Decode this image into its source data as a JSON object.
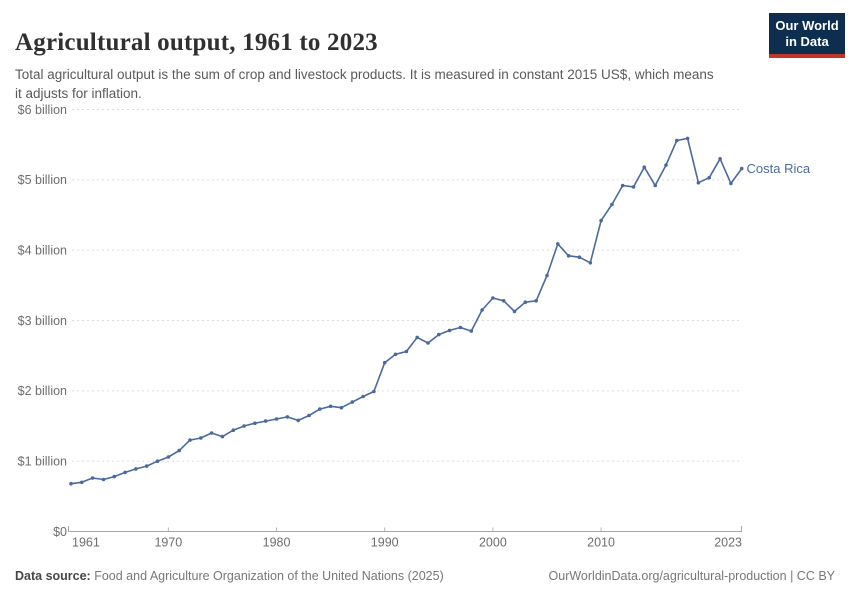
{
  "header": {
    "title": "Agricultural output, 1961 to 2023",
    "subtitle": "Total agricultural output is the sum of crop and livestock products. It is measured in constant 2015 US$, which means it adjusts for inflation.",
    "logo": {
      "line1": "Our World",
      "line2": "in Data",
      "bg_color": "#0d2e4e",
      "bar_color": "#c0362c"
    }
  },
  "chart_data": {
    "type": "line",
    "title": "Agricultural output, 1961 to 2023",
    "entity": "Costa Rica",
    "unit": "constant 2015 US$, billions",
    "xlim": [
      1961,
      2023
    ],
    "ylim": [
      0,
      6
    ],
    "grid": true,
    "legend": "end-of-line-label",
    "x_ticks": [
      1961,
      1970,
      1980,
      1990,
      2000,
      2010,
      2023
    ],
    "y_ticks": [
      {
        "value": 0,
        "label": "$0"
      },
      {
        "value": 1,
        "label": "$1 billion"
      },
      {
        "value": 2,
        "label": "$2 billion"
      },
      {
        "value": 3,
        "label": "$3 billion"
      },
      {
        "value": 4,
        "label": "$4 billion"
      },
      {
        "value": 5,
        "label": "$5 billion"
      },
      {
        "value": 6,
        "label": "$6 billion"
      }
    ],
    "x": [
      1961,
      1962,
      1963,
      1964,
      1965,
      1966,
      1967,
      1968,
      1969,
      1970,
      1971,
      1972,
      1973,
      1974,
      1975,
      1976,
      1977,
      1978,
      1979,
      1980,
      1981,
      1982,
      1983,
      1984,
      1985,
      1986,
      1987,
      1988,
      1989,
      1990,
      1991,
      1992,
      1993,
      1994,
      1995,
      1996,
      1997,
      1998,
      1999,
      2000,
      2001,
      2002,
      2003,
      2004,
      2005,
      2006,
      2007,
      2008,
      2009,
      2010,
      2011,
      2012,
      2013,
      2014,
      2015,
      2016,
      2017,
      2018,
      2019,
      2020,
      2021,
      2022,
      2023
    ],
    "series": [
      {
        "name": "Costa Rica",
        "color": "#4a6a9e",
        "values": [
          0.68,
          0.7,
          0.76,
          0.74,
          0.78,
          0.84,
          0.89,
          0.93,
          1.0,
          1.06,
          1.15,
          1.3,
          1.33,
          1.4,
          1.35,
          1.44,
          1.5,
          1.54,
          1.57,
          1.6,
          1.63,
          1.58,
          1.65,
          1.74,
          1.78,
          1.76,
          1.84,
          1.92,
          1.99,
          2.4,
          2.52,
          2.56,
          2.76,
          2.68,
          2.8,
          2.86,
          2.9,
          2.85,
          3.15,
          3.32,
          3.28,
          3.13,
          3.26,
          3.28,
          3.64,
          4.09,
          3.92,
          3.9,
          3.82,
          4.42,
          4.65,
          4.92,
          4.9,
          5.18,
          4.92,
          5.21,
          5.56,
          5.59,
          4.96,
          5.03,
          5.3,
          4.95,
          5.16
        ]
      }
    ]
  },
  "footer": {
    "source_label": "Data source:",
    "source_text": "Food and Agriculture Organization of the United Nations (2025)",
    "link": "OurWorldinData.org/agricultural-production",
    "suffix": " | CC BY"
  }
}
